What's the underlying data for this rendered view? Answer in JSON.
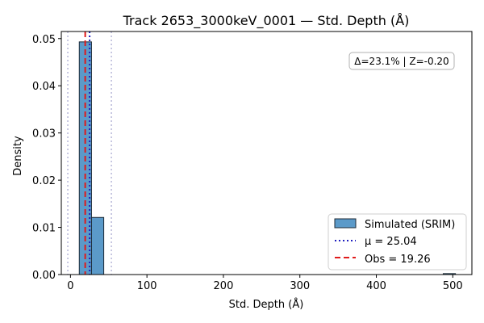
{
  "chart_data": {
    "type": "bar",
    "title": "Track 2653_3000keV_0001 — Std. Depth (Å)",
    "xlabel": "Std. Depth (Å)",
    "ylabel": "Density",
    "xlim": [
      -12,
      525
    ],
    "ylim": [
      0,
      0.0515
    ],
    "xticks": [
      0,
      100,
      200,
      300,
      400,
      500
    ],
    "xtick_labels": [
      "0",
      "100",
      "200",
      "300",
      "400",
      "500"
    ],
    "yticks": [
      0,
      0.01,
      0.02,
      0.03,
      0.04,
      0.05
    ],
    "ytick_labels": [
      "0.00",
      "0.01",
      "0.02",
      "0.03",
      "0.04",
      "0.05"
    ],
    "bins": [
      {
        "x0": 11.5,
        "x1": 27.5,
        "y": 0.0493
      },
      {
        "x0": 27.5,
        "x1": 43.5,
        "y": 0.0121
      },
      {
        "x0": 487.5,
        "x1": 503.5,
        "y": 0.0002
      }
    ],
    "mean": 25.04,
    "observed": 19.26,
    "bounds": [
      -3.5,
      53.5
    ],
    "annotation": "Δ=23.1% | Z=-0.20",
    "legend": {
      "placement": "lower-right",
      "entries": [
        "Simulated (SRIM)",
        "μ = 25.04",
        "Obs = 19.26"
      ]
    },
    "colors": {
      "bar_fill": "#5b9ac9",
      "bar_edge": "#1c2a36",
      "mean_line": "#1f1fbf",
      "obs_line": "#e01b1b",
      "bound_line": "#b7b7d8"
    }
  }
}
